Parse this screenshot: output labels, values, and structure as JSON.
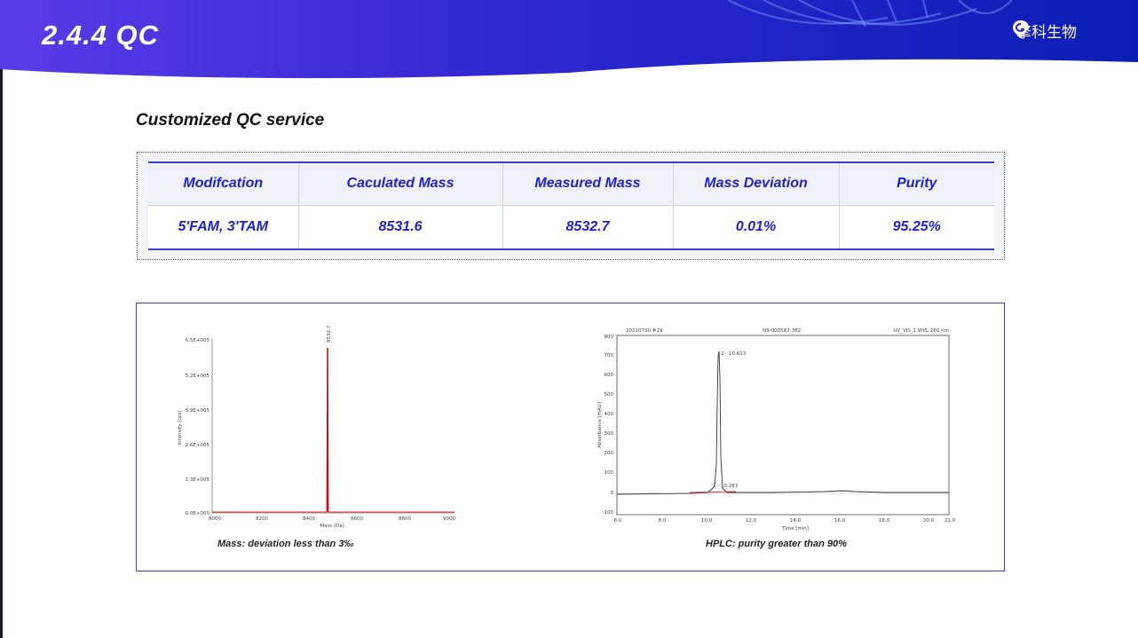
{
  "slide": {
    "title": "2.4.4  QC",
    "logo_text": "擎科生物",
    "colors": {
      "banner_start": "#3b2fd9",
      "banner_end": "#0a1fb8",
      "accent": "#1d1fd6",
      "border": "#3b3fc8"
    }
  },
  "section": {
    "title": "Customized QC service"
  },
  "qc_table": {
    "headers": [
      "Modifcation",
      "Caculated Mass",
      "Measured Mass",
      "Mass Deviation",
      "Purity"
    ],
    "rows": [
      [
        "5'FAM, 3'TAM",
        "8531.6",
        "8532.7",
        "0.01%",
        "95.25%"
      ]
    ]
  },
  "figures": {
    "mass": {
      "caption": "Mass: deviation less than 3‰",
      "y_ticks": [
        "6.5E+005",
        "5.2E+005",
        "3.9E+005",
        "2.6E+005",
        "1.3E+005",
        "0.0E+000"
      ],
      "x_ticks": [
        "8000",
        "8200",
        "8400",
        "8600",
        "8800",
        "9000"
      ],
      "ylabel": "Intensity (cps)",
      "xlabel": "Mass (Da)",
      "peak_label": "8532.7"
    },
    "hplc": {
      "caption": "HPLC: purity greater than 90%",
      "header_left": "20220730 #19",
      "header_mid": "NS-000587-382",
      "header_right": "UV_VIS_1 WVL:260 nm",
      "y_ticks": [
        "800",
        "700",
        "600",
        "500",
        "400",
        "300",
        "200",
        "100",
        "0",
        "-100"
      ],
      "x_ticks": [
        "6.0",
        "8.0",
        "10.0",
        "12.0",
        "14.0",
        "16.0",
        "18.0",
        "20.0",
        "21.0"
      ],
      "ylabel": "Absorbance [mAU]",
      "xlabel": "Time [min]",
      "peak_label": "2 - 10.613",
      "minor_peak_label": "1 - 10.263"
    }
  }
}
